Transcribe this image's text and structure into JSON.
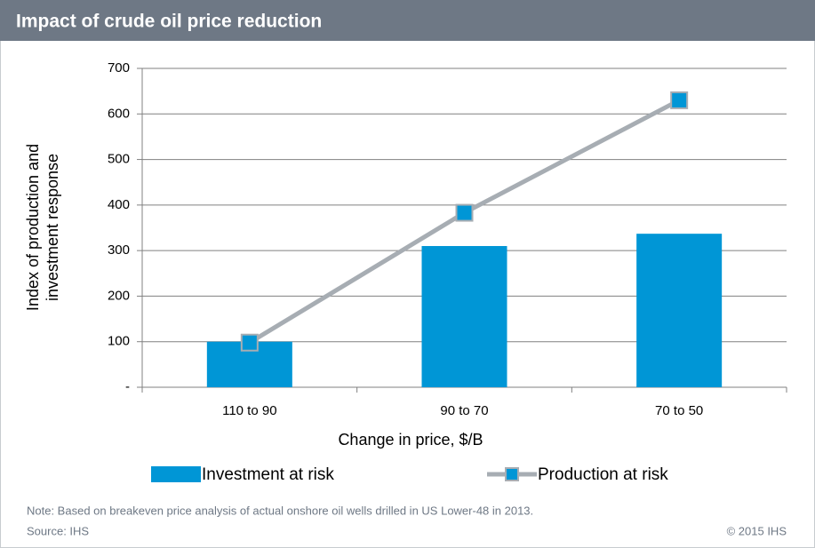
{
  "chart_data": {
    "type": "bar",
    "title": "Impact of crude oil price reduction",
    "categories": [
      "110 to 90",
      "90 to 70",
      "70 to 50"
    ],
    "series": [
      {
        "name": "Investment at risk",
        "type": "bar",
        "color": "#0096d6",
        "values": [
          100,
          310,
          337
        ]
      },
      {
        "name": "Production at risk",
        "type": "line",
        "color": "#a7adb3",
        "marker_color": "#0096d6",
        "values": [
          98,
          383,
          630
        ]
      }
    ],
    "ylim": [
      0,
      700
    ],
    "yticks": [
      {
        "value": 0,
        "label": "-"
      },
      100,
      200,
      300,
      400,
      500,
      600,
      700
    ],
    "grid": true,
    "ylabel": [
      "Index of production and",
      "investment response"
    ],
    "xlabel": "Change in price, $/B",
    "note": "Note: Based on breakeven price analysis of actual onshore oil wells drilled in US Lower-48 in 2013.",
    "source": "Source: IHS",
    "copyright": "© 2015 IHS"
  }
}
